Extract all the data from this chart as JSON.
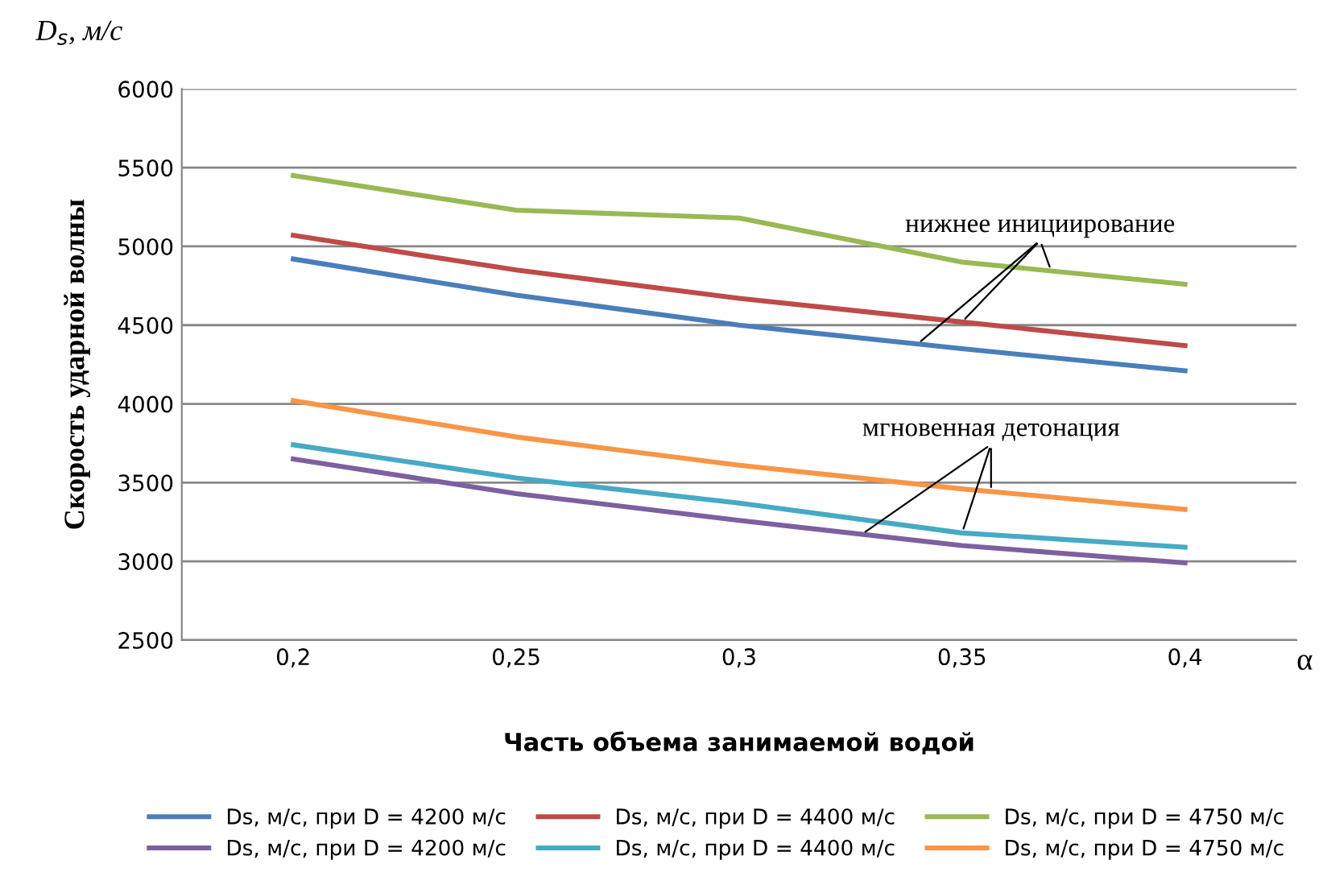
{
  "chart_data": {
    "type": "line",
    "ylabel": "Скорость ударной волны",
    "xlabel": "Часть объема занимаемой водой",
    "categories": [
      "0,2",
      "0,25",
      "0,3",
      "0,35",
      "0,4"
    ],
    "ylim": [
      2500,
      6000
    ],
    "yticks": [
      2500,
      3000,
      3500,
      4000,
      4500,
      5000,
      5500,
      6000
    ],
    "grid": "y",
    "legend": "bottom",
    "marker": "none",
    "line_style": "solid",
    "annotations": [
      "D$_{s}$, м/с",
      "α",
      {
        "text": "нижнее инициирование",
        "x": "0,35",
        "y": 4520
      },
      {
        "text": "мгновенная детонация",
        "x": "0,35",
        "y": 3180
      }
    ],
    "series": [
      {
        "name": "Ds, м/с, при D = 4200 м/с",
        "color": "#4a7ebb",
        "values": [
          4920,
          4690,
          4500,
          4350,
          4210
        ]
      },
      {
        "name": "Ds, м/с, при D = 4400 м/с",
        "color": "#be4b48",
        "values": [
          5070,
          4850,
          4670,
          4520,
          4370
        ]
      },
      {
        "name": "Ds, м/с, при D = 4750 м/с",
        "color": "#98b954",
        "values": [
          5450,
          5230,
          5180,
          4900,
          4760
        ]
      },
      {
        "name": "Ds, м/с, при D = 4200 м/с",
        "color": "#7d60a0",
        "values": [
          3650,
          3430,
          3260,
          3100,
          2990
        ]
      },
      {
        "name": "Ds, м/с, при D = 4400 м/с",
        "color": "#46aac5",
        "values": [
          3740,
          3530,
          3370,
          3180,
          3090
        ]
      },
      {
        "name": "Ds, м/с, при D = 4750 м/с",
        "color": "#f79646",
        "values": [
          4020,
          3790,
          3610,
          3460,
          3330
        ]
      }
    ]
  }
}
